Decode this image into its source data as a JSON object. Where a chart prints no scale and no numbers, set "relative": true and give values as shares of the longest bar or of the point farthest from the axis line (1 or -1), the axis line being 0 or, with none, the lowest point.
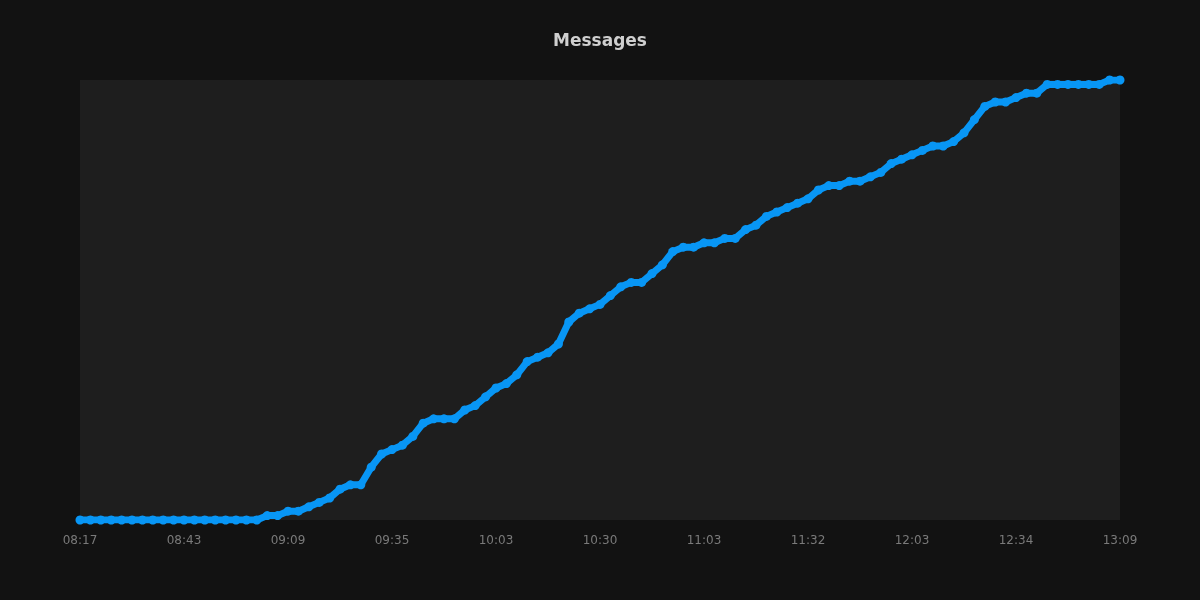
{
  "chart_data": {
    "type": "line",
    "title": "Messages",
    "relative": true,
    "marker": "circle",
    "color": "#0896f5",
    "categories": [
      "08:17",
      null,
      null,
      null,
      null,
      null,
      null,
      null,
      null,
      null,
      "08:43",
      null,
      null,
      null,
      null,
      null,
      null,
      null,
      null,
      null,
      "09:09",
      null,
      null,
      null,
      null,
      null,
      null,
      null,
      null,
      null,
      "09:35",
      null,
      null,
      null,
      null,
      null,
      null,
      null,
      null,
      null,
      "10:03",
      null,
      null,
      null,
      null,
      null,
      null,
      null,
      null,
      null,
      "10:30",
      null,
      null,
      null,
      null,
      null,
      null,
      null,
      null,
      null,
      "11:03",
      null,
      null,
      null,
      null,
      null,
      null,
      null,
      null,
      null,
      "11:32",
      null,
      null,
      null,
      null,
      null,
      null,
      null,
      null,
      null,
      "12:03",
      null,
      null,
      null,
      null,
      null,
      null,
      null,
      null,
      null,
      "12:34",
      null,
      null,
      null,
      null,
      null,
      null,
      null,
      null,
      null,
      "13:09"
    ],
    "values": [
      0,
      0,
      0,
      0,
      0,
      0,
      0,
      0,
      0,
      0,
      0,
      0,
      0,
      0,
      0,
      0,
      0,
      0,
      0.01,
      0.01,
      0.02,
      0.02,
      0.03,
      0.04,
      0.05,
      0.07,
      0.08,
      0.08,
      0.12,
      0.15,
      0.16,
      0.17,
      0.19,
      0.22,
      0.23,
      0.23,
      0.23,
      0.25,
      0.26,
      0.28,
      0.3,
      0.31,
      0.33,
      0.36,
      0.37,
      0.38,
      0.4,
      0.45,
      0.47,
      0.48,
      0.49,
      0.51,
      0.53,
      0.54,
      0.54,
      0.56,
      0.58,
      0.61,
      0.62,
      0.62,
      0.63,
      0.63,
      0.64,
      0.64,
      0.66,
      0.67,
      0.69,
      0.7,
      0.71,
      0.72,
      0.73,
      0.75,
      0.76,
      0.76,
      0.77,
      0.77,
      0.78,
      0.79,
      0.81,
      0.82,
      0.83,
      0.84,
      0.85,
      0.85,
      0.86,
      0.88,
      0.91,
      0.94,
      0.95,
      0.95,
      0.96,
      0.97,
      0.97,
      0.99,
      0.99,
      0.99,
      0.99,
      0.99,
      0.99,
      1,
      1
    ]
  }
}
